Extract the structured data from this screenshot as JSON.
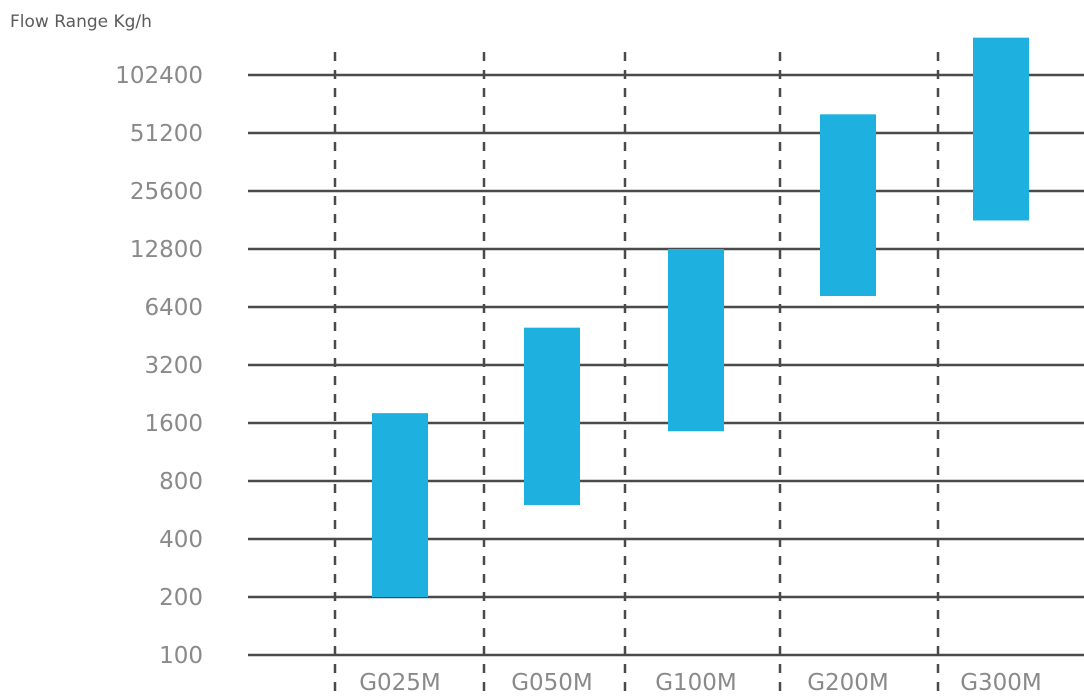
{
  "chart_data": {
    "type": "bar",
    "subtype": "floating-range",
    "title": "Flow Range Kg/h",
    "ylabel": "Flow Range Kg/h",
    "yscale": "log2",
    "ylim": [
      100,
      102400
    ],
    "y_ticks": [
      "100",
      "200",
      "400",
      "800",
      "1600",
      "3200",
      "6400",
      "12800",
      "25600",
      "51200",
      "102400"
    ],
    "grid": true,
    "grid_style": "solid horizontal, dashed vertical separators",
    "categories": [
      "G025M",
      "G050M",
      "G100M",
      "G200M",
      "G300M"
    ],
    "series": [
      {
        "ranges": [
          [
            200,
            1800
          ],
          [
            600,
            5000
          ],
          [
            1450,
            12800
          ],
          [
            7300,
            64000
          ],
          [
            18000,
            160000
          ]
        ]
      }
    ],
    "colors": {
      "bar": "#1eb0de",
      "grid": "#4a4a4a",
      "text": "#8a8a8a"
    }
  }
}
